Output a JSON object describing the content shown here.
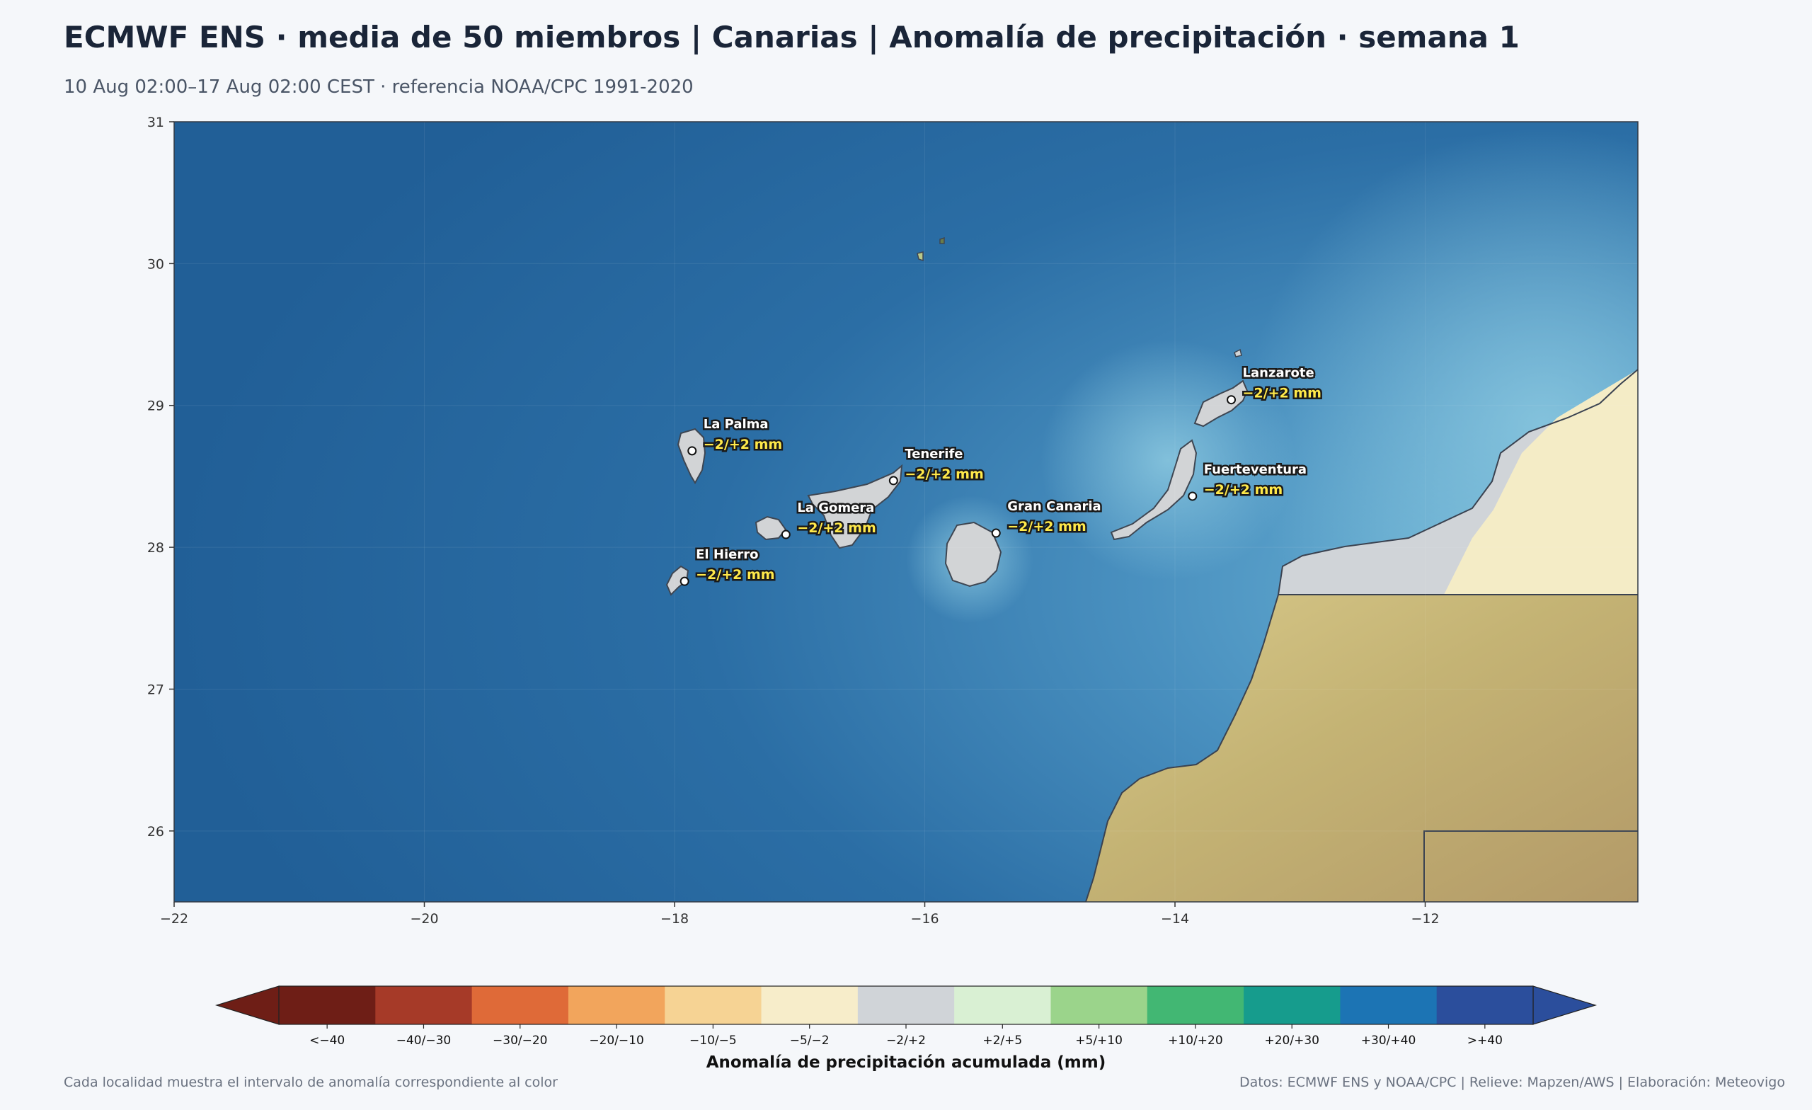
{
  "header": {
    "title": "ECMWF ENS · media de 50 miembros | Canarias | Anomalía de precipitación · semana 1",
    "subtitle": "10 Aug 02:00–17 Aug 02:00 CEST · referencia NOAA/CPC 1991-2020"
  },
  "map": {
    "lon_range": [
      -22,
      -10.3
    ],
    "lat_range": [
      25.5,
      31
    ],
    "x_ticks": [
      {
        "value": -22,
        "label": "−22"
      },
      {
        "value": -20,
        "label": "−20"
      },
      {
        "value": -18,
        "label": "−18"
      },
      {
        "value": -16,
        "label": "−16"
      },
      {
        "value": -14,
        "label": "−14"
      },
      {
        "value": -12,
        "label": "−12"
      }
    ],
    "y_ticks": [
      {
        "value": 26,
        "label": "26"
      },
      {
        "value": 27,
        "label": "27"
      },
      {
        "value": 28,
        "label": "28"
      },
      {
        "value": 29,
        "label": "29"
      },
      {
        "value": 30,
        "label": "30"
      },
      {
        "value": 31,
        "label": "31"
      }
    ],
    "colors": {
      "ocean_deep": "#23609a",
      "ocean_shallow": "#63a8cc",
      "island_fill": "#d2d4d6",
      "land_relief": "#c7b679",
      "anomaly_neutral": "#d0d4d8",
      "anomaly_dry_light": "#f4ecc6"
    },
    "places": [
      {
        "name": "La Palma",
        "value": "−2/+2 mm",
        "lon": -17.86,
        "lat": 28.68
      },
      {
        "name": "Tenerife",
        "value": "−2/+2 mm",
        "lon": -16.25,
        "lat": 28.47
      },
      {
        "name": "La Gomera",
        "value": "−2/+2 mm",
        "lon": -17.11,
        "lat": 28.09
      },
      {
        "name": "El Hierro",
        "value": "−2/+2 mm",
        "lon": -17.92,
        "lat": 27.76
      },
      {
        "name": "Gran Canaria",
        "value": "−2/+2 mm",
        "lon": -15.43,
        "lat": 28.1
      },
      {
        "name": "Lanzarote",
        "value": "−2/+2 mm",
        "lon": -13.55,
        "lat": 29.04
      },
      {
        "name": "Fuerteventura",
        "value": "−2/+2 mm",
        "lon": -13.86,
        "lat": 28.36
      }
    ]
  },
  "colorbar": {
    "title": "Anomalía de precipitación acumulada (mm)",
    "bins": [
      {
        "label": "<−40",
        "color": "#6e1e16"
      },
      {
        "label": "−40/−30",
        "color": "#a63a28"
      },
      {
        "label": "−30/−20",
        "color": "#df6a38"
      },
      {
        "label": "−20/−10",
        "color": "#f2a55c"
      },
      {
        "label": "−10/−5",
        "color": "#f6d394"
      },
      {
        "label": "−5/−2",
        "color": "#f7edca"
      },
      {
        "label": "−2/+2",
        "color": "#d0d4d8"
      },
      {
        "label": "+2/+5",
        "color": "#d9f0d3"
      },
      {
        "label": "+5/+10",
        "color": "#9bd48b"
      },
      {
        "label": "+10/+20",
        "color": "#42b773"
      },
      {
        "label": "+20/+30",
        "color": "#169c8d"
      },
      {
        "label": "+30/+40",
        "color": "#1c74b4"
      },
      {
        "label": ">+40",
        "color": "#2b4e9c"
      }
    ]
  },
  "footer": {
    "note_left": "Cada localidad muestra el intervalo de anomalía correspondiente al color",
    "note_right": "Datos: ECMWF ENS y NOAA/CPC | Relieve: Mapzen/AWS | Elaboración: Meteovigo"
  }
}
